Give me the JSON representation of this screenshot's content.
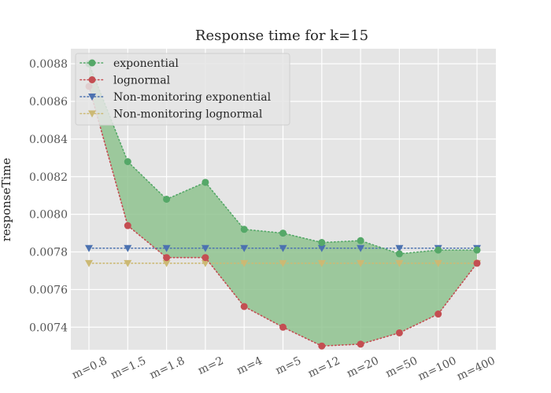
{
  "chart_data": {
    "type": "line",
    "title": "Response time for k=15",
    "xlabel": "",
    "ylabel": "responseTime",
    "categories": [
      "m=0.8",
      "m=1.5",
      "m=1.8",
      "m=2",
      "m=4",
      "m=5",
      "m=12",
      "m=20",
      "m=50",
      "m=100",
      "m=400"
    ],
    "ylim": [
      0.00728,
      0.00888
    ],
    "yticks": [
      0.0074,
      0.0076,
      0.0078,
      0.008,
      0.0082,
      0.0084,
      0.0086,
      0.0088
    ],
    "ytick_labels": [
      "0.0074",
      "0.0076",
      "0.0078",
      "0.0080",
      "0.0082",
      "0.0084",
      "0.0086",
      "0.0088"
    ],
    "grid": true,
    "legend_position": "top-left",
    "fill_between": {
      "upper": "exponential",
      "lower": "lognormal",
      "color": "#8fc38f"
    },
    "series": [
      {
        "name": "exponential",
        "color": "#55a868",
        "marker": "circle",
        "values": [
          0.0088,
          0.00828,
          0.00808,
          0.00817,
          0.00792,
          0.0079,
          0.00785,
          0.00786,
          0.00779,
          0.00781,
          0.00781
        ]
      },
      {
        "name": "lognormal",
        "color": "#c44e52",
        "marker": "circle",
        "values": [
          0.00868,
          0.00794,
          0.00777,
          0.00777,
          0.00751,
          0.0074,
          0.0073,
          0.00731,
          0.00737,
          0.00747,
          0.00774
        ]
      },
      {
        "name": "Non-monitoring exponential",
        "color": "#4c72b0",
        "marker": "triangle-down",
        "values": [
          0.00782,
          0.00782,
          0.00782,
          0.00782,
          0.00782,
          0.00782,
          0.00782,
          0.00782,
          0.00782,
          0.00782,
          0.00782
        ]
      },
      {
        "name": "Non-monitoring lognormal",
        "color": "#ccb974",
        "marker": "triangle-down",
        "values": [
          0.00774,
          0.00774,
          0.00774,
          0.00774,
          0.00774,
          0.00774,
          0.00774,
          0.00774,
          0.00774,
          0.00774,
          0.00774
        ]
      }
    ]
  }
}
